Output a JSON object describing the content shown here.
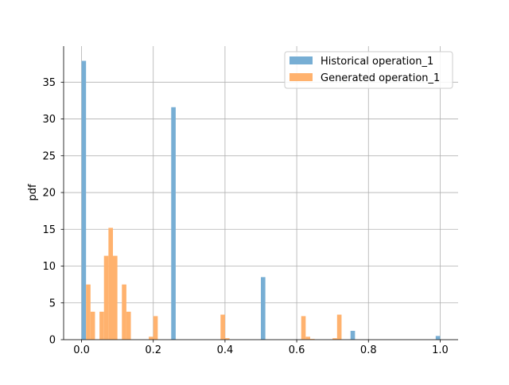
{
  "chart_data": {
    "type": "bar",
    "ylabel": "pdf",
    "xlim": [
      -0.05,
      1.05
    ],
    "ylim": [
      0,
      39.9
    ],
    "grid": true,
    "legend_position": "top-right",
    "x_ticks": [
      "0.0",
      "0.2",
      "0.4",
      "0.6",
      "0.8",
      "1.0"
    ],
    "y_ticks": [
      "0",
      "5",
      "10",
      "15",
      "20",
      "25",
      "30",
      "35"
    ],
    "bin_width": 0.0125,
    "series": [
      {
        "name": "Historical operation_1",
        "color": "#77aed4",
        "bins": [
          {
            "x": 0.0,
            "y": 37.9
          },
          {
            "x": 0.25,
            "y": 31.6
          },
          {
            "x": 0.5,
            "y": 8.5
          },
          {
            "x": 0.75,
            "y": 1.2
          },
          {
            "x": 0.9875,
            "y": 0.5
          }
        ]
      },
      {
        "name": "Generated operation_1",
        "color": "#ffb26e",
        "bins": [
          {
            "x": 0.0125,
            "y": 7.5
          },
          {
            "x": 0.025,
            "y": 3.8
          },
          {
            "x": 0.05,
            "y": 3.8
          },
          {
            "x": 0.0625,
            "y": 11.4
          },
          {
            "x": 0.075,
            "y": 15.2
          },
          {
            "x": 0.0875,
            "y": 11.4
          },
          {
            "x": 0.1125,
            "y": 7.5
          },
          {
            "x": 0.125,
            "y": 3.8
          },
          {
            "x": 0.1875,
            "y": 0.4
          },
          {
            "x": 0.2,
            "y": 3.2
          },
          {
            "x": 0.3875,
            "y": 3.4
          },
          {
            "x": 0.4,
            "y": 0.2
          },
          {
            "x": 0.6125,
            "y": 3.2
          },
          {
            "x": 0.625,
            "y": 0.4
          },
          {
            "x": 0.6375,
            "y": 0.1
          },
          {
            "x": 0.7,
            "y": 0.2
          },
          {
            "x": 0.7125,
            "y": 3.4
          }
        ]
      }
    ]
  }
}
